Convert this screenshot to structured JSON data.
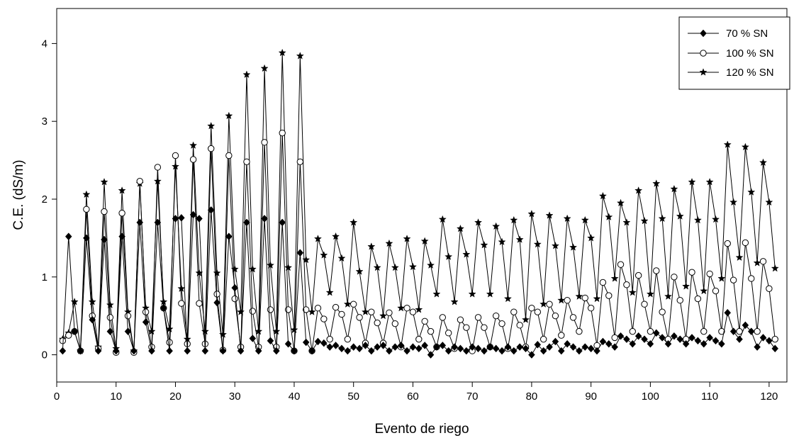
{
  "chart_data": {
    "type": "line",
    "xlabel": "Evento de riego",
    "ylabel": "C.E.  (dS/m)",
    "xlim": [
      0,
      123
    ],
    "ylim": [
      -0.35,
      4.45
    ],
    "xticks": [
      0,
      10,
      20,
      30,
      40,
      50,
      60,
      70,
      80,
      90,
      100,
      110,
      120
    ],
    "yticks": [
      0,
      1,
      2,
      3,
      4
    ],
    "legend_position": "top-right",
    "x": [
      1,
      2,
      3,
      4,
      5,
      6,
      7,
      8,
      9,
      10,
      11,
      12,
      13,
      14,
      15,
      16,
      17,
      18,
      19,
      20,
      21,
      22,
      23,
      24,
      25,
      26,
      27,
      28,
      29,
      30,
      31,
      32,
      33,
      34,
      35,
      36,
      37,
      38,
      39,
      40,
      41,
      42,
      43,
      44,
      45,
      46,
      47,
      48,
      49,
      50,
      51,
      52,
      53,
      54,
      55,
      56,
      57,
      58,
      59,
      60,
      61,
      62,
      63,
      64,
      65,
      66,
      67,
      68,
      69,
      70,
      71,
      72,
      73,
      74,
      75,
      76,
      77,
      78,
      79,
      80,
      81,
      82,
      83,
      84,
      85,
      86,
      87,
      88,
      89,
      90,
      91,
      92,
      93,
      94,
      95,
      96,
      97,
      98,
      99,
      100,
      101,
      102,
      103,
      104,
      105,
      106,
      107,
      108,
      109,
      110,
      111,
      112,
      113,
      114,
      115,
      116,
      117,
      118,
      119,
      120,
      121
    ],
    "series": [
      {
        "name": "70 % SN",
        "marker": "diamond",
        "values": [
          0.05,
          1.52,
          0.3,
          0.05,
          1.5,
          0.45,
          0.05,
          1.48,
          0.3,
          0.05,
          1.52,
          0.3,
          0.05,
          1.7,
          0.42,
          0.05,
          1.7,
          0.6,
          0.05,
          1.75,
          1.76,
          0.05,
          1.8,
          1.75,
          0.05,
          1.86,
          0.67,
          0.05,
          1.52,
          0.86,
          0.05,
          1.7,
          0.21,
          0.05,
          1.75,
          0.18,
          0.05,
          1.7,
          0.14,
          0.05,
          1.31,
          0.16,
          0.05,
          0.17,
          0.15,
          0.1,
          0.12,
          0.08,
          0.05,
          0.1,
          0.08,
          0.12,
          0.05,
          0.1,
          0.12,
          0.05,
          0.1,
          0.12,
          0.05,
          0.1,
          0.08,
          0.12,
          0.0,
          0.1,
          0.12,
          0.05,
          0.1,
          0.08,
          0.05,
          0.1,
          0.08,
          0.05,
          0.1,
          0.08,
          0.05,
          0.1,
          0.05,
          0.1,
          0.08,
          0.0,
          0.13,
          0.05,
          0.1,
          0.17,
          0.05,
          0.14,
          0.1,
          0.05,
          0.1,
          0.08,
          0.05,
          0.17,
          0.14,
          0.1,
          0.24,
          0.2,
          0.14,
          0.24,
          0.2,
          0.14,
          0.28,
          0.22,
          0.14,
          0.24,
          0.2,
          0.14,
          0.22,
          0.18,
          0.14,
          0.22,
          0.18,
          0.14,
          0.54,
          0.3,
          0.2,
          0.38,
          0.3,
          0.1,
          0.22,
          0.18,
          0.08
        ]
      },
      {
        "name": "100 % SN",
        "marker": "circle",
        "values": [
          0.18,
          0.25,
          0.3,
          0.05,
          1.87,
          0.5,
          0.08,
          1.84,
          0.48,
          0.03,
          1.82,
          0.5,
          0.03,
          2.23,
          0.55,
          0.1,
          2.41,
          0.6,
          0.16,
          2.56,
          0.66,
          0.14,
          2.51,
          0.66,
          0.14,
          2.65,
          0.78,
          0.06,
          2.56,
          0.72,
          0.1,
          2.48,
          0.56,
          0.1,
          2.73,
          0.58,
          0.1,
          2.85,
          0.58,
          0.05,
          2.48,
          0.58,
          0.05,
          0.6,
          0.46,
          0.2,
          0.61,
          0.52,
          0.2,
          0.65,
          0.48,
          0.15,
          0.55,
          0.41,
          0.15,
          0.54,
          0.4,
          0.1,
          0.6,
          0.55,
          0.2,
          0.43,
          0.3,
          0.1,
          0.48,
          0.28,
          0.08,
          0.45,
          0.35,
          0.05,
          0.48,
          0.35,
          0.1,
          0.5,
          0.4,
          0.08,
          0.55,
          0.38,
          0.1,
          0.6,
          0.55,
          0.2,
          0.65,
          0.5,
          0.25,
          0.7,
          0.48,
          0.3,
          0.73,
          0.6,
          0.12,
          0.93,
          0.76,
          0.22,
          1.16,
          0.9,
          0.3,
          1.02,
          0.65,
          0.3,
          1.08,
          0.55,
          0.2,
          1.0,
          0.7,
          0.2,
          1.06,
          0.72,
          0.3,
          1.04,
          0.82,
          0.3,
          1.43,
          0.96,
          0.3,
          1.44,
          0.98,
          0.3,
          1.2,
          0.85,
          0.2
        ]
      },
      {
        "name": "120 % SN",
        "marker": "star",
        "values": [
          0.2,
          0.28,
          0.68,
          0.05,
          2.06,
          0.68,
          0.1,
          2.22,
          0.64,
          0.08,
          2.11,
          0.55,
          0.05,
          2.2,
          0.6,
          0.3,
          2.23,
          0.68,
          0.33,
          2.42,
          0.85,
          0.2,
          2.69,
          1.05,
          0.3,
          2.94,
          1.05,
          0.26,
          3.07,
          1.1,
          0.55,
          3.6,
          1.1,
          0.3,
          3.68,
          1.15,
          0.3,
          3.88,
          1.12,
          0.32,
          3.84,
          1.22,
          0.55,
          1.49,
          1.28,
          0.8,
          1.52,
          1.24,
          0.65,
          1.7,
          1.07,
          0.55,
          1.39,
          1.12,
          0.5,
          1.43,
          1.12,
          0.6,
          1.49,
          1.13,
          0.58,
          1.46,
          1.15,
          0.78,
          1.74,
          1.26,
          0.68,
          1.62,
          1.29,
          0.78,
          1.7,
          1.41,
          0.78,
          1.65,
          1.45,
          0.72,
          1.73,
          1.48,
          0.45,
          1.81,
          1.42,
          0.65,
          1.79,
          1.4,
          0.7,
          1.75,
          1.38,
          0.75,
          1.73,
          1.5,
          0.72,
          2.04,
          1.77,
          0.98,
          1.95,
          1.7,
          0.8,
          2.11,
          1.72,
          0.78,
          2.2,
          1.75,
          0.75,
          2.13,
          1.78,
          0.88,
          2.22,
          1.73,
          0.82,
          2.22,
          1.74,
          0.98,
          2.7,
          1.96,
          1.25,
          2.67,
          2.09,
          1.18,
          2.47,
          1.96,
          1.11
        ]
      }
    ]
  }
}
